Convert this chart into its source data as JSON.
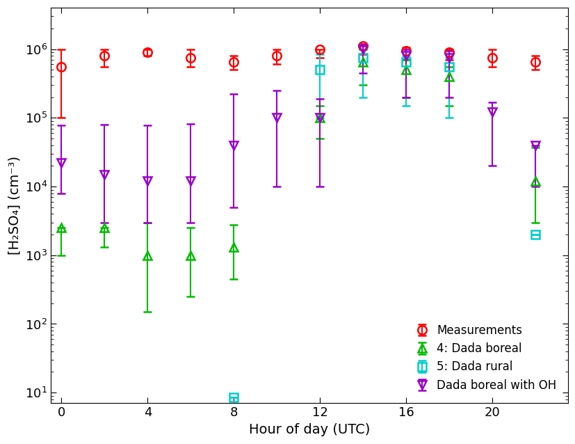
{
  "xlabel": "Hour of day (UTC)",
  "ylabel": "[H₂SO₄] (cm⁻³)",
  "series": {
    "measurements": {
      "label": "Measurements",
      "color": "#ff0000",
      "marker": "o",
      "markersize": 9,
      "x": [
        0,
        2,
        4,
        6,
        8,
        10,
        12,
        14,
        16,
        18,
        20,
        22
      ],
      "y": [
        550000.0,
        800000.0,
        900000.0,
        750000.0,
        650000.0,
        800000.0,
        1000000.0,
        1100000.0,
        950000.0,
        900000.0,
        750000.0,
        650000.0
      ],
      "yerr_lo": [
        450000.0,
        250000.0,
        100000.0,
        200000.0,
        150000.0,
        200000.0,
        250000.0,
        250000.0,
        250000.0,
        200000.0,
        200000.0,
        150000.0
      ],
      "yerr_hi": [
        450000.0,
        200000.0,
        100000.0,
        250000.0,
        150000.0,
        200000.0,
        0,
        0,
        100000.0,
        100000.0,
        250000.0,
        150000.0
      ]
    },
    "dada_boreal": {
      "label": "4: Dada boreal",
      "color": "#00bb00",
      "marker": "^",
      "markersize": 9,
      "x": [
        0,
        2,
        4,
        6,
        8,
        12,
        14,
        16,
        18,
        22
      ],
      "y": [
        2500.0,
        2500.0,
        1000.0,
        1000.0,
        1300.0,
        100000.0,
        650000.0,
        500000.0,
        400000.0,
        12000.0
      ],
      "yerr_lo": [
        1500.0,
        1200.0,
        850.0,
        750.0,
        850.0,
        50000.0,
        350000.0,
        300000.0,
        250000.0,
        9000.0
      ],
      "yerr_hi": [
        0,
        0,
        2000.0,
        1500.0,
        1500.0,
        50000.0,
        350000.0,
        200000.0,
        150000.0,
        25000.0
      ]
    },
    "dada_rural": {
      "label": "5: Dada rural",
      "color": "#00cccc",
      "marker": "s",
      "markersize": 9,
      "x": [
        8,
        12,
        14,
        16,
        18,
        22
      ],
      "y": [
        8.5,
        500000.0,
        750000.0,
        650000.0,
        550000.0,
        2000.0
      ],
      "yerr_lo": [
        0,
        400000.0,
        550000.0,
        500000.0,
        450000.0,
        0
      ],
      "yerr_hi": [
        0,
        350000.0,
        250000.0,
        150000.0,
        200000.0,
        0
      ]
    },
    "dada_boreal_oh": {
      "label": "Dada boreal with OH",
      "color": "#9900cc",
      "marker": "v",
      "markersize": 9,
      "x": [
        0,
        2,
        4,
        6,
        8,
        10,
        12,
        14,
        16,
        18,
        20,
        22
      ],
      "y": [
        22000.0,
        15000.0,
        12000.0,
        12000.0,
        40000.0,
        100000.0,
        100000.0,
        1000000.0,
        800000.0,
        750000.0,
        120000.0,
        40000.0
      ],
      "yerr_lo": [
        14000.0,
        12000.0,
        9000.0,
        9000.0,
        35000.0,
        90000.0,
        90000.0,
        550000.0,
        600000.0,
        550000.0,
        100000.0,
        30000.0
      ],
      "yerr_hi": [
        55000.0,
        65000.0,
        65000.0,
        70000.0,
        180000.0,
        150000.0,
        90000.0,
        200000.0,
        200000.0,
        200000.0,
        50000.0,
        0
      ]
    }
  },
  "xticks": [
    0,
    4,
    8,
    12,
    16,
    20
  ],
  "xlim": [
    -0.5,
    23.5
  ],
  "ylim": [
    7,
    4000000.0
  ],
  "background_color": "#ffffff"
}
